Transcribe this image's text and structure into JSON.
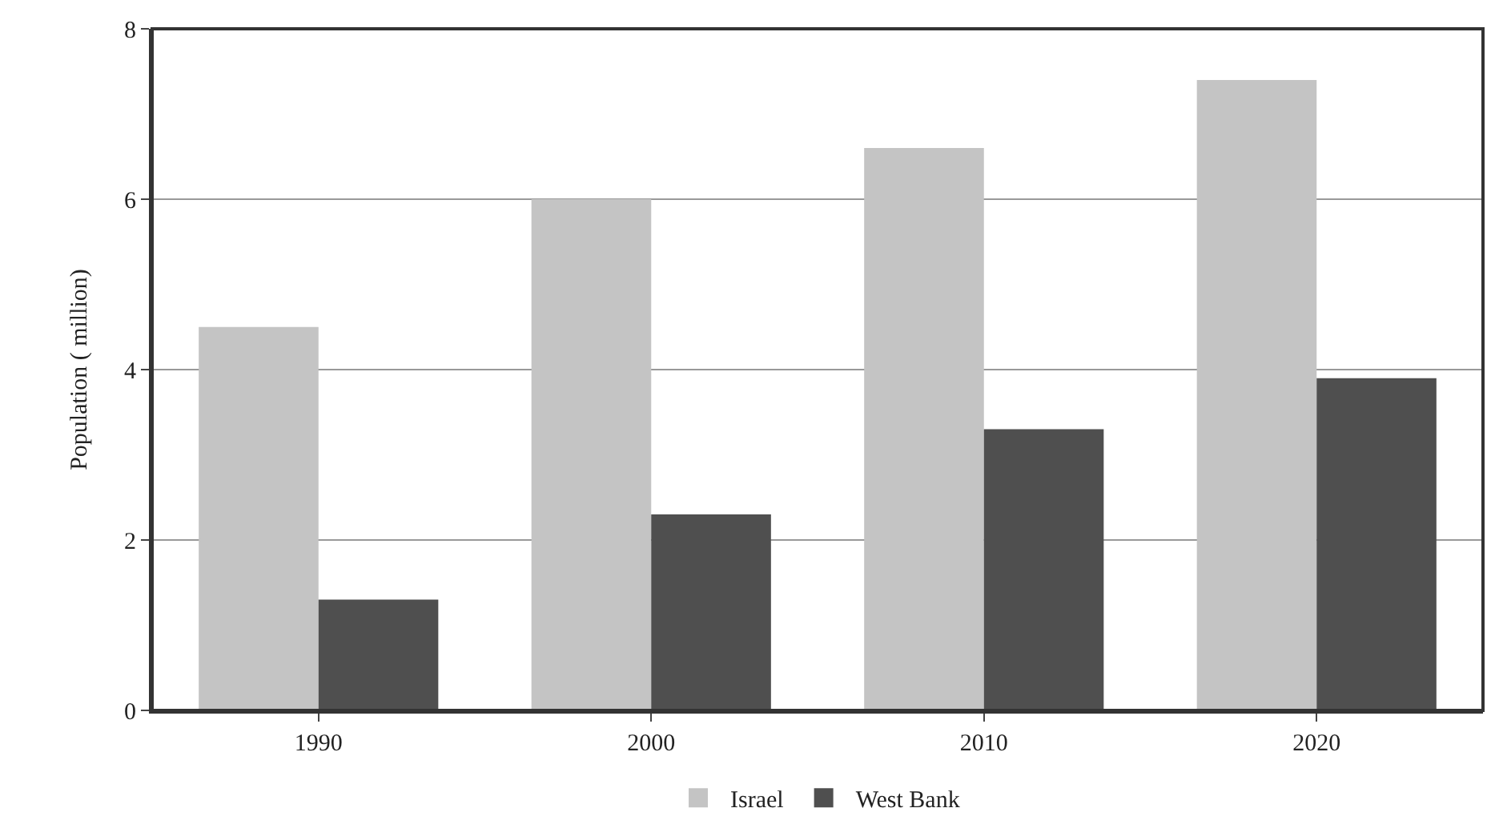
{
  "chart_data": {
    "type": "bar",
    "ylabel": "Population ( million)",
    "categories": [
      "1990",
      "2000",
      "2010",
      "2020"
    ],
    "series": [
      {
        "name": "Israel",
        "color": "#c4c4c4",
        "values": [
          4.5,
          6.0,
          6.6,
          7.4
        ]
      },
      {
        "name": "West Bank",
        "color": "#4f4f4f",
        "values": [
          1.3,
          2.3,
          3.3,
          3.9
        ]
      }
    ],
    "ylim": [
      0,
      8
    ],
    "yticks": [
      0,
      2,
      4,
      6,
      8
    ],
    "grid": "y",
    "legend": "bottom"
  }
}
